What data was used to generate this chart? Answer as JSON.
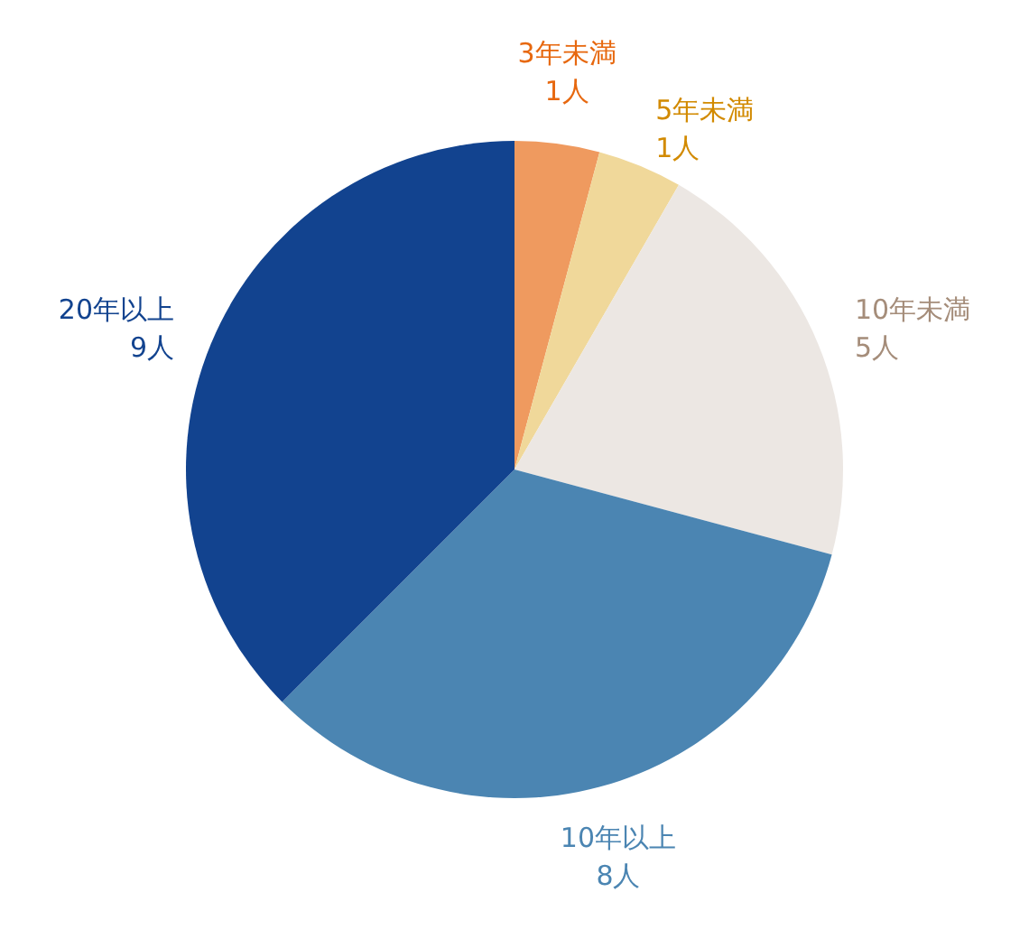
{
  "chart_data": {
    "type": "pie",
    "categories": [
      "3年未満",
      "5年未満",
      "10年未満",
      "10年以上",
      "20年以上"
    ],
    "values": [
      1,
      1,
      5,
      8,
      9
    ],
    "value_labels": [
      "1人",
      "1人",
      "5人",
      "8人",
      "9人"
    ],
    "colors": [
      "#ef9a5f",
      "#f0d89a",
      "#ece7e3",
      "#4b85b2",
      "#12438f"
    ],
    "legend": false
  }
}
